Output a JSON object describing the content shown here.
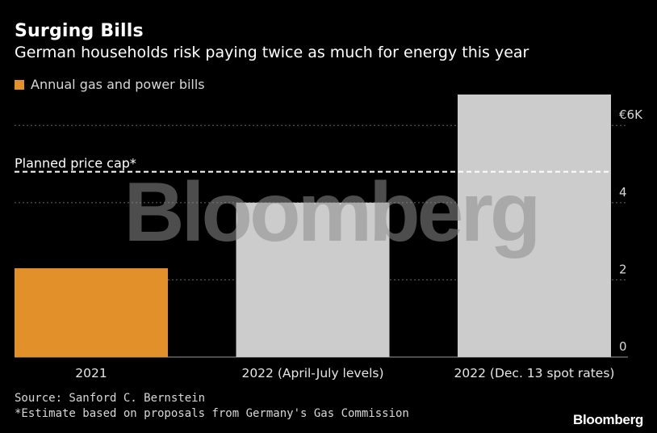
{
  "header": {
    "title": "Surging Bills",
    "subtitle": "German households risk paying twice as much for energy this year"
  },
  "footer": {
    "source": "Source: Sanford C. Bernstein",
    "footnote": "*Estimate based on proposals from Germany's Gas Commission",
    "brand": "Bloomberg"
  },
  "watermark": "Bloomberg",
  "colors": {
    "background": "#000000",
    "bar_2021": "#e2902a",
    "bar_2022": "#cccccc",
    "gridline": "#666666",
    "cap_line": "#ffffff",
    "text": "#ffffff"
  },
  "chart_data": {
    "type": "bar",
    "categories": [
      "2021",
      "2022 (April-July levels)",
      "2022 (Dec. 13 spot rates)"
    ],
    "values": [
      2.3,
      4.0,
      6.8
    ],
    "bar_colors": [
      "#e2902a",
      "#cccccc",
      "#cccccc"
    ],
    "legend": [
      {
        "label": "Annual gas and power bills",
        "color": "#e2902a"
      }
    ],
    "legend_placement": "top-left",
    "ylim": [
      0,
      6.8
    ],
    "yticks": [
      {
        "value": 0,
        "label": "0"
      },
      {
        "value": 2,
        "label": "2"
      },
      {
        "value": 4,
        "label": "4"
      },
      {
        "value": 6,
        "label": "€6K"
      }
    ],
    "ytick_side": "right",
    "grid": true,
    "annotations": [
      {
        "label": "Planned price cap*",
        "value": 4.8,
        "style": "dashed"
      }
    ]
  }
}
